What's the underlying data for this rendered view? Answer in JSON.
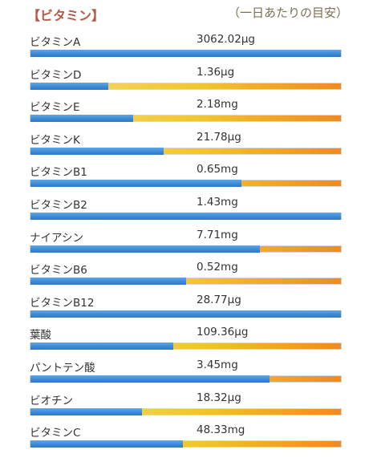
{
  "header": {
    "title": "【ビタミン】",
    "subtitle": "（一日あたりの目安）"
  },
  "colors": {
    "title": "#b55a4a",
    "subtitle": "#7d7055",
    "bar_fill": "#3d8ad8",
    "bar_track_start": "#f4dc7a",
    "bar_track_end": "#f08a22"
  },
  "nutrients": [
    {
      "name": "ビタミンA",
      "value": "3062.02μg",
      "fill_fraction": 1.0
    },
    {
      "name": "ビタミンD",
      "value": "1.36μg",
      "fill_fraction": 0.25
    },
    {
      "name": "ビタミンE",
      "value": "2.18mg",
      "fill_fraction": 0.33
    },
    {
      "name": "ビタミンK",
      "value": "21.78μg",
      "fill_fraction": 0.43
    },
    {
      "name": "ビタミンB1",
      "value": "0.65mg",
      "fill_fraction": 0.68
    },
    {
      "name": "ビタミンB2",
      "value": "1.43mg",
      "fill_fraction": 1.0
    },
    {
      "name": "ナイアシン",
      "value": "7.71mg",
      "fill_fraction": 0.74
    },
    {
      "name": "ビタミンB6",
      "value": "0.52mg",
      "fill_fraction": 0.5
    },
    {
      "name": "ビタミンB12",
      "value": "28.77μg",
      "fill_fraction": 1.0
    },
    {
      "name": "葉酸",
      "value": "109.36μg",
      "fill_fraction": 0.46
    },
    {
      "name": "パントテン酸",
      "value": "3.45mg",
      "fill_fraction": 0.77
    },
    {
      "name": "ビオチン",
      "value": "18.32μg",
      "fill_fraction": 0.36
    },
    {
      "name": "ビタミンC",
      "value": "48.33mg",
      "fill_fraction": 0.49
    }
  ]
}
